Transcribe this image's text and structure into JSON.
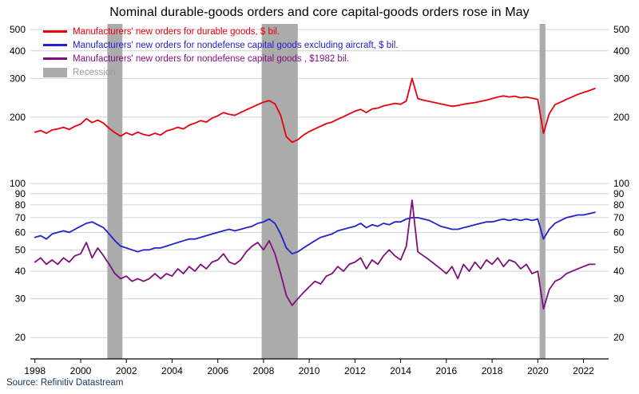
{
  "title": "Nominal durable-goods orders and core capital-goods orders rose in May",
  "source": "Source: Refinitiv Datastream",
  "colors": {
    "durable": "#e8000d",
    "core_capex": "#2222cc",
    "real_capex": "#7f0f7f",
    "recession": "#ababab",
    "recession_label": "#9b9b9b",
    "grid": "#d2d2d2",
    "axis": "#000000",
    "source_text": "#17365d"
  },
  "legend": [
    {
      "label": "Manufacturers' new orders for durable goods, $ bil.",
      "type": "line",
      "color_key": "durable"
    },
    {
      "label": "Manufacturers' new orders for nondefense capital goods excluding aircraft, $ bil.",
      "type": "line",
      "color_key": "core_capex"
    },
    {
      "label": "Manufacturers' new orders for nondefense capital goods , $1982 bil.",
      "type": "line",
      "color_key": "real_capex"
    },
    {
      "label": "Recession",
      "type": "box",
      "color_key": "recession"
    }
  ],
  "chart_data": {
    "type": "line",
    "title": "Nominal durable-goods orders and core capital-goods orders rose in May",
    "xlabel": "",
    "ylabel": "",
    "y_scale": "log",
    "ylim": [
      16,
      530
    ],
    "yticks": [
      20,
      30,
      40,
      50,
      60,
      70,
      80,
      90,
      100,
      200,
      300,
      400,
      500
    ],
    "xlim": [
      1997.8,
      2023.1
    ],
    "xticks": [
      1998,
      2000,
      2002,
      2004,
      2006,
      2008,
      2010,
      2012,
      2014,
      2016,
      2018,
      2020,
      2022
    ],
    "grid": "horizontal",
    "legend_position": "top-left-inside",
    "recessions": [
      [
        2001.17,
        2001.83
      ],
      [
        2007.92,
        2009.5
      ],
      [
        2020.08,
        2020.33
      ]
    ],
    "series": [
      {
        "name": "Manufacturers' new orders for durable goods, $ bil.",
        "color_key": "durable",
        "x_start": 1998,
        "x_step": 0.25,
        "values": [
          171,
          174,
          169,
          175,
          177,
          180,
          176,
          182,
          186,
          197,
          189,
          194,
          188,
          178,
          170,
          164,
          170,
          166,
          171,
          167,
          165,
          169,
          166,
          173,
          176,
          180,
          177,
          184,
          188,
          193,
          190,
          198,
          203,
          210,
          206,
          204,
          210,
          216,
          222,
          228,
          234,
          238,
          230,
          204,
          163,
          154,
          158,
          166,
          172,
          177,
          182,
          187,
          190,
          196,
          201,
          207,
          213,
          217,
          210,
          218,
          220,
          225,
          228,
          231,
          229,
          237,
          300,
          243,
          239,
          236,
          233,
          230,
          227,
          224,
          226,
          229,
          231,
          233,
          236,
          239,
          243,
          247,
          250,
          247,
          249,
          245,
          247,
          244,
          241,
          169,
          207,
          228,
          234,
          241,
          247,
          254,
          259,
          264,
          270
        ]
      },
      {
        "name": "Manufacturers' new orders for nondefense capital goods excluding aircraft, $ bil.",
        "color_key": "core_capex",
        "x_start": 1998,
        "x_step": 0.25,
        "values": [
          57,
          58,
          56,
          59,
          60,
          61,
          60,
          62,
          64,
          66,
          67,
          65,
          63,
          59,
          55,
          52,
          51,
          50,
          49,
          50,
          50,
          51,
          51,
          52,
          53,
          54,
          55,
          56,
          56,
          57,
          58,
          59,
          60,
          61,
          62,
          61,
          62,
          63,
          64,
          66,
          67,
          69,
          66,
          59,
          51,
          48,
          49,
          51,
          53,
          55,
          57,
          58,
          59,
          61,
          62,
          63,
          64,
          66,
          63,
          65,
          64,
          66,
          65,
          67,
          67,
          69,
          70,
          70,
          69,
          68,
          66,
          64,
          63,
          62,
          62,
          63,
          64,
          65,
          66,
          67,
          67,
          68,
          69,
          68,
          69,
          68,
          69,
          68,
          69,
          56,
          62,
          66,
          68,
          70,
          71,
          72,
          72,
          73,
          74
        ]
      },
      {
        "name": "Manufacturers' new orders for nondefense capital goods , $1982 bil.",
        "color_key": "real_capex",
        "x_start": 1998,
        "x_step": 0.25,
        "values": [
          44,
          46,
          43,
          45,
          43,
          46,
          44,
          47,
          48,
          54,
          46,
          51,
          47,
          43,
          39,
          37,
          38,
          36,
          37,
          36,
          37,
          39,
          37,
          39,
          38,
          41,
          39,
          42,
          40,
          43,
          41,
          44,
          45,
          48,
          44,
          43,
          45,
          49,
          52,
          54,
          50,
          55,
          48,
          39,
          31,
          28,
          30,
          32,
          34,
          36,
          35,
          38,
          39,
          42,
          40,
          43,
          44,
          46,
          41,
          45,
          43,
          47,
          50,
          47,
          45,
          52,
          84,
          49,
          47,
          45,
          43,
          41,
          39,
          42,
          37,
          43,
          40,
          44,
          41,
          45,
          43,
          46,
          42,
          45,
          44,
          41,
          43,
          39,
          40,
          27,
          33,
          36,
          37,
          39,
          40,
          41,
          42,
          43,
          43
        ]
      }
    ]
  }
}
